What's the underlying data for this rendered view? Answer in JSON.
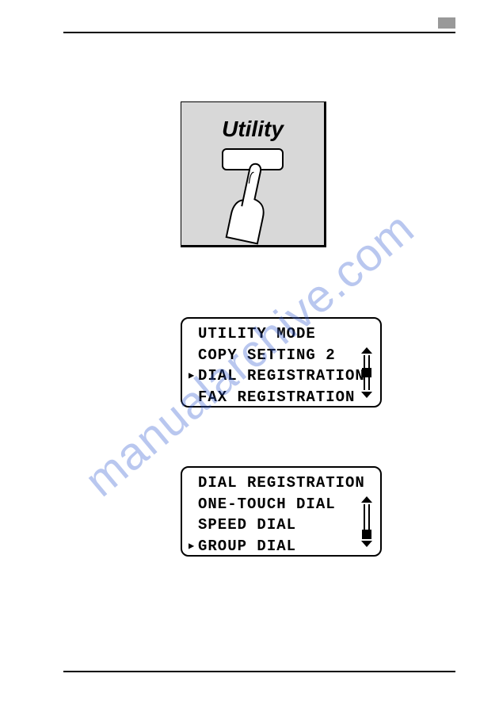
{
  "utility": {
    "label": "Utility",
    "panel_bg": "#d8d8d8",
    "button_bg": "#ffffff"
  },
  "lcd1": {
    "title": "UTILITY MODE",
    "rows": [
      {
        "text": "COPY SETTING 2",
        "selected": false
      },
      {
        "text": "DIAL REGISTRATION",
        "selected": true
      },
      {
        "text": "FAX REGISTRATION",
        "selected": false
      }
    ],
    "thumb_index": 1
  },
  "lcd2": {
    "title": "DIAL REGISTRATION",
    "rows": [
      {
        "text": "ONE-TOUCH DIAL",
        "selected": false
      },
      {
        "text": "SPEED DIAL",
        "selected": false
      },
      {
        "text": "GROUP DIAL",
        "selected": true
      }
    ],
    "thumb_index": 2
  },
  "watermark": {
    "text": "manualarchive.com",
    "color": "rgba(55,95,210,0.35)"
  },
  "colors": {
    "border": "#000000",
    "page_bg": "#ffffff",
    "header_badge": "#999999"
  }
}
